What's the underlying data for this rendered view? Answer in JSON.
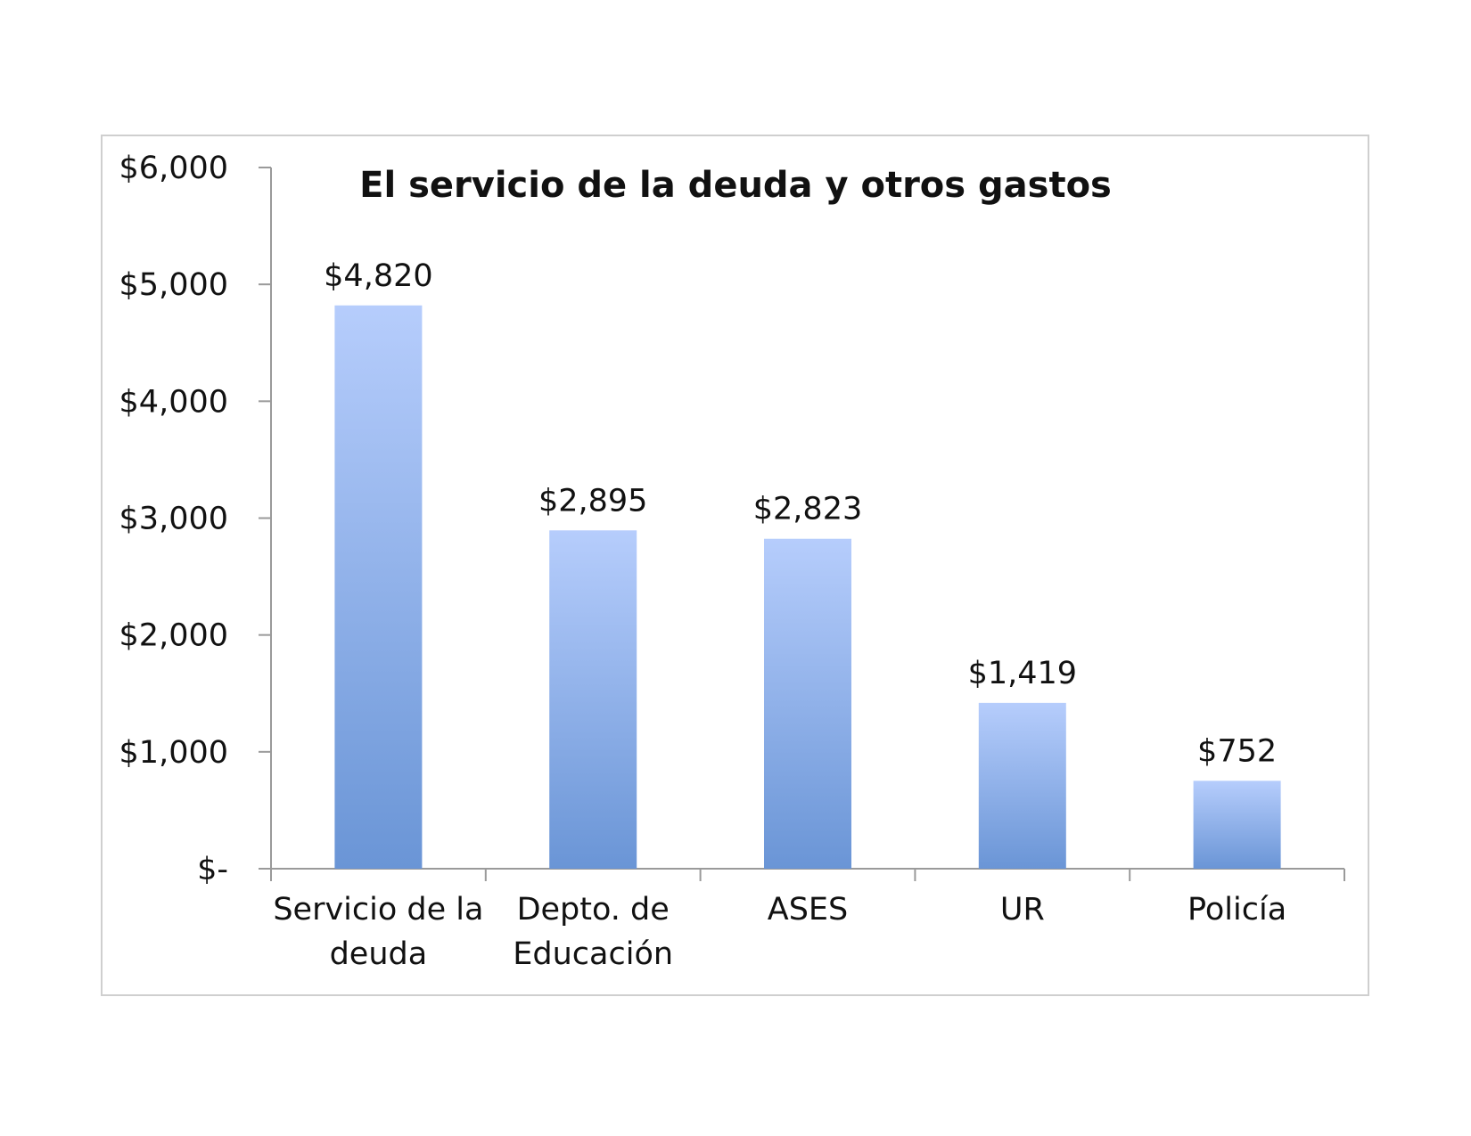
{
  "colors": {
    "bar_top": "#b6cdfc",
    "bar_bottom": "#6a95d6",
    "axis": "#9a9a9a",
    "frame": "#cfcfcf"
  },
  "chart_data": {
    "type": "bar",
    "title": "El servicio de la deuda y otros gastos",
    "xlabel": "",
    "ylabel": "",
    "categories": [
      [
        "Servicio de la",
        "deuda"
      ],
      [
        "Depto. de",
        "Educación"
      ],
      [
        "ASES"
      ],
      [
        "UR"
      ],
      [
        "Policía"
      ]
    ],
    "values": [
      4820,
      2895,
      2823,
      1419,
      752
    ],
    "value_labels": [
      "$4,820",
      "$2,895",
      "$2,823",
      "$1,419",
      "$752"
    ],
    "ylim": [
      0,
      6000
    ],
    "yticks": [
      0,
      1000,
      2000,
      3000,
      4000,
      5000,
      6000
    ],
    "ytick_labels": [
      "$-",
      "$1,000",
      "$2,000",
      "$3,000",
      "$4,000",
      "$5,000",
      "$6,000"
    ],
    "grid": false,
    "legend": "none"
  }
}
